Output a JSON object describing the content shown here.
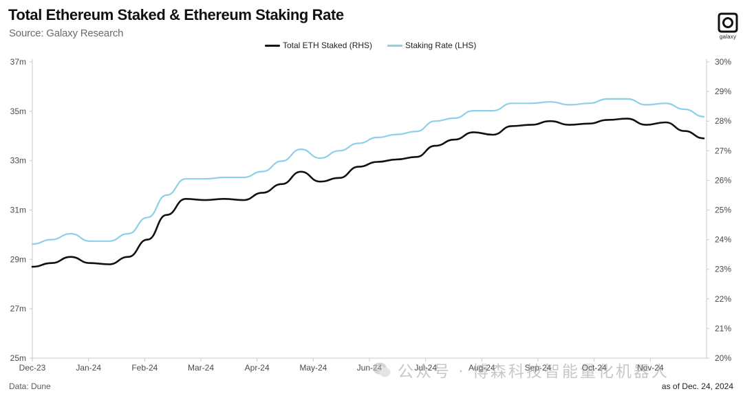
{
  "header": {
    "title": "Total Ethereum Staked & Ethereum Staking Rate",
    "subtitle": "Source: Galaxy Research",
    "logo_text": "galaxy"
  },
  "footer": {
    "source_note": "Data: Dune",
    "asof_note": "as of Dec. 24, 2024"
  },
  "watermark": {
    "text": "公众号 · 博森科技智能量化机器人"
  },
  "colors": {
    "eth_staked": "#111111",
    "staking_rate": "#8ccfe9",
    "axis": "#c8c8c8"
  },
  "chart_data": {
    "type": "line",
    "title": "Total Ethereum Staked & Ethereum Staking Rate",
    "subtitle": "Source: Galaxy Research",
    "legend_position": "top-center",
    "grid": false,
    "x_ticks": [
      "Dec-23",
      "Jan-24",
      "Feb-24",
      "Mar-24",
      "Apr-24",
      "May-24",
      "Jun-24",
      "Jul-24",
      "Aug-24",
      "Sep-24",
      "Oct-24",
      "Nov-24"
    ],
    "left_axis": {
      "range": [
        25,
        37
      ],
      "unit": "m",
      "ticks": [
        "25m",
        "27m",
        "29m",
        "31m",
        "33m",
        "35m",
        "37m"
      ]
    },
    "right_axis": {
      "range": [
        20,
        30
      ],
      "unit": "%",
      "ticks": [
        "20%",
        "21%",
        "22%",
        "23%",
        "24%",
        "25%",
        "26%",
        "27%",
        "28%",
        "29%",
        "30%"
      ]
    },
    "series": [
      {
        "name": "Total ETH Staked (RHS)",
        "axis": "left",
        "points": [
          [
            "Dec-23",
            28.7
          ],
          [
            "Dec-23 mid",
            28.85
          ],
          [
            "Dec-23 late",
            29.1
          ],
          [
            "Jan-24 early",
            28.85
          ],
          [
            "Jan-24",
            28.8
          ],
          [
            "Jan-24 late",
            29.1
          ],
          [
            "Feb-24 early",
            29.8
          ],
          [
            "Feb-24",
            30.8
          ],
          [
            "Feb-24 late",
            31.45
          ],
          [
            "Mar-24 early",
            31.4
          ],
          [
            "Mar-24",
            31.45
          ],
          [
            "Mar-24 late",
            31.4
          ],
          [
            "Apr-24 early",
            31.7
          ],
          [
            "Apr-24",
            32.05
          ],
          [
            "Apr-24 late",
            32.55
          ],
          [
            "May-24 early",
            32.15
          ],
          [
            "May-24",
            32.3
          ],
          [
            "May-24 late",
            32.75
          ],
          [
            "Jun-24 early",
            32.95
          ],
          [
            "Jun-24",
            33.05
          ],
          [
            "Jun-24 late",
            33.15
          ],
          [
            "Jul-24 early",
            33.6
          ],
          [
            "Jul-24",
            33.85
          ],
          [
            "Jul-24 late",
            34.15
          ],
          [
            "Aug-24 early",
            34.05
          ],
          [
            "Aug-24",
            34.4
          ],
          [
            "Aug-24 late",
            34.45
          ],
          [
            "Sep-24 early",
            34.6
          ],
          [
            "Sep-24",
            34.45
          ],
          [
            "Sep-24 late",
            34.5
          ],
          [
            "Oct-24",
            34.65
          ],
          [
            "Oct-24 late",
            34.7
          ],
          [
            "Nov-24 early",
            34.45
          ],
          [
            "Nov-24",
            34.55
          ],
          [
            "Nov-24 late",
            34.2
          ],
          [
            "Dec-24",
            33.9
          ]
        ]
      },
      {
        "name": "Staking Rate (LHS)",
        "axis": "right",
        "points": [
          [
            "Dec-23",
            23.85
          ],
          [
            "Dec-23 mid",
            24.0
          ],
          [
            "Dec-23 late",
            24.2
          ],
          [
            "Jan-24 early",
            23.95
          ],
          [
            "Jan-24",
            23.95
          ],
          [
            "Jan-24 late",
            24.2
          ],
          [
            "Feb-24 early",
            24.75
          ],
          [
            "Feb-24",
            25.5
          ],
          [
            "Feb-24 late",
            26.05
          ],
          [
            "Mar-24 early",
            26.05
          ],
          [
            "Mar-24",
            26.1
          ],
          [
            "Mar-24 late",
            26.1
          ],
          [
            "Apr-24 early",
            26.3
          ],
          [
            "Apr-24",
            26.65
          ],
          [
            "Apr-24 late",
            27.05
          ],
          [
            "May-24 early",
            26.75
          ],
          [
            "May-24",
            27.0
          ],
          [
            "May-24 late",
            27.25
          ],
          [
            "Jun-24 early",
            27.45
          ],
          [
            "Jun-24",
            27.55
          ],
          [
            "Jun-24 late",
            27.65
          ],
          [
            "Jul-24 early",
            28.0
          ],
          [
            "Jul-24",
            28.1
          ],
          [
            "Jul-24 late",
            28.35
          ],
          [
            "Aug-24 early",
            28.35
          ],
          [
            "Aug-24",
            28.6
          ],
          [
            "Aug-24 late",
            28.6
          ],
          [
            "Sep-24 early",
            28.65
          ],
          [
            "Sep-24",
            28.55
          ],
          [
            "Sep-24 late",
            28.6
          ],
          [
            "Oct-24",
            28.75
          ],
          [
            "Oct-24 late",
            28.75
          ],
          [
            "Nov-24 early",
            28.55
          ],
          [
            "Nov-24",
            28.6
          ],
          [
            "Nov-24 late",
            28.4
          ],
          [
            "Dec-24",
            28.15
          ]
        ]
      }
    ]
  }
}
